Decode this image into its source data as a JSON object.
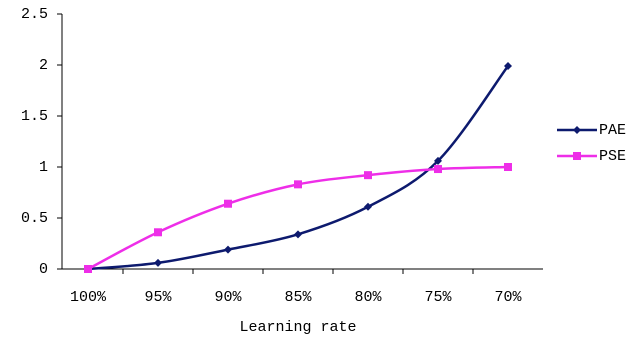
{
  "chart_data": {
    "type": "line",
    "x_label": "Learning rate",
    "categories": [
      "100%",
      "95%",
      "90%",
      "85%",
      "80%",
      "75%",
      "70%"
    ],
    "series": [
      {
        "name": "PAE",
        "color": "#0d1a6e",
        "marker": "diamond",
        "values": [
          0,
          0.06,
          0.19,
          0.34,
          0.61,
          1.06,
          1.99
        ]
      },
      {
        "name": "PSE",
        "color": "#ee2ee8",
        "marker": "square",
        "values": [
          0,
          0.36,
          0.64,
          0.83,
          0.92,
          0.98,
          1.0
        ]
      }
    ],
    "ylim": [
      0,
      2.5
    ],
    "yticks": [
      0,
      0.5,
      1,
      1.5,
      2,
      2.5
    ],
    "smooth": true,
    "legend": "right"
  }
}
